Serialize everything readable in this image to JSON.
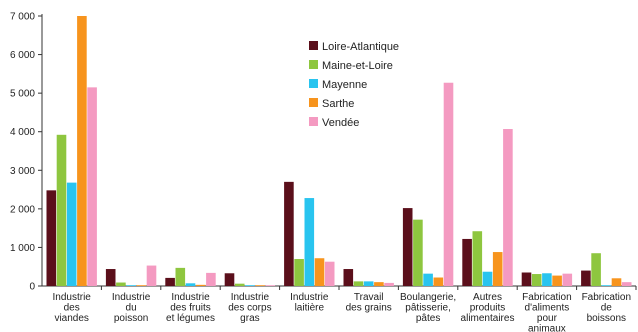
{
  "chart_data": {
    "type": "bar",
    "y_ticks": [
      "0",
      "1 000",
      "2 000",
      "3 000",
      "4 000",
      "5 000",
      "6 000",
      "7 000"
    ],
    "ylim": [
      0,
      7000
    ],
    "grid": false,
    "legend_placement": "top-center",
    "categories": [
      [
        "Industrie",
        "des",
        "viandes"
      ],
      [
        "Industrie",
        "du",
        "poisson"
      ],
      [
        "Industrie",
        "des fruits",
        "et légumes"
      ],
      [
        "Industrie",
        "des corps",
        "gras"
      ],
      [
        "Industrie",
        "laitière"
      ],
      [
        "Travail",
        "des grains"
      ],
      [
        "Boulangerie,",
        "pâtisserie,",
        "pâtes"
      ],
      [
        "Autres",
        "produits",
        "alimentaires"
      ],
      [
        "Fabrication",
        "d'aliments",
        "pour",
        "animaux"
      ],
      [
        "Fabrication",
        "de",
        "boissons"
      ]
    ],
    "series": [
      {
        "name": "Loire-Atlantique",
        "color": "#5b0f1b",
        "values": [
          2480,
          440,
          210,
          330,
          2700,
          440,
          2020,
          1220,
          350,
          400
        ]
      },
      {
        "name": "Maine-et-Loire",
        "color": "#8ec63f",
        "values": [
          3920,
          90,
          470,
          60,
          700,
          120,
          1720,
          1420,
          310,
          850
        ]
      },
      {
        "name": "Mayenne",
        "color": "#29c4ef",
        "values": [
          2680,
          20,
          70,
          20,
          2280,
          120,
          320,
          370,
          330,
          20
        ]
      },
      {
        "name": "Sarthe",
        "color": "#f7941d",
        "values": [
          7000,
          20,
          30,
          20,
          720,
          100,
          220,
          880,
          270,
          200
        ]
      },
      {
        "name": "Vendée",
        "color": "#f49ac1",
        "values": [
          5150,
          530,
          340,
          20,
          630,
          80,
          5270,
          4070,
          320,
          100
        ]
      }
    ]
  }
}
